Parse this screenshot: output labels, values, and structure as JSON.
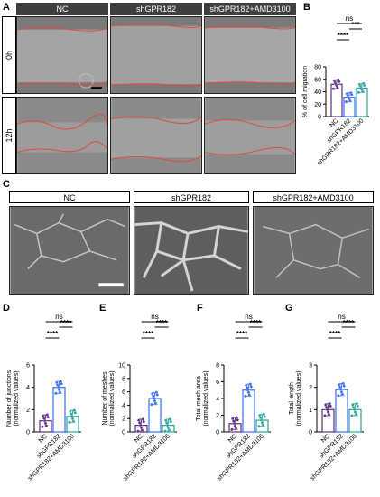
{
  "panel_labels": {
    "a": "A",
    "b": "B",
    "c": "C",
    "d": "D",
    "e": "E",
    "f": "F",
    "g": "G"
  },
  "panelA": {
    "columns": [
      "NC",
      "shGPR182",
      "shGPR182+AMD3100"
    ],
    "rows": [
      "0h",
      "12h"
    ]
  },
  "panelC": {
    "columns": [
      "NC",
      "shGPR182",
      "shGPR182+AMD3100"
    ]
  },
  "colors": {
    "nc": "#5b2d82",
    "sh": "#3a6bff",
    "amd": "#27a39a",
    "wound": "#e04a3a",
    "header_bg": "#3f3f3f"
  },
  "chart_data": [
    {
      "panel": "B",
      "type": "bar",
      "ylabel": "% of cell migration",
      "ylim": [
        0,
        80
      ],
      "yticks": [
        "0",
        "20",
        "40",
        "60",
        "80"
      ],
      "categories": [
        "NC",
        "shGPR182",
        "shGPR182+AMD3100"
      ],
      "values": [
        52,
        31,
        46
      ],
      "sig": [
        {
          "pair": "NC-shGPR182",
          "label": "****"
        },
        {
          "pair": "shGPR182-AMD3100",
          "label": "***"
        },
        {
          "pair": "NC-AMD3100",
          "label": "ns"
        }
      ]
    },
    {
      "panel": "D",
      "type": "bar",
      "ylabel": "Number of junctions (normalized values)",
      "ylim": [
        0,
        6
      ],
      "yticks": [
        "0",
        "2",
        "4",
        "6"
      ],
      "categories": [
        "NC",
        "shGPR182",
        "shGPR182+AMD3100"
      ],
      "values": [
        1.0,
        4.0,
        1.4
      ],
      "sig": [
        {
          "pair": "NC-shGPR182",
          "label": "****"
        },
        {
          "pair": "shGPR182-AMD3100",
          "label": "****"
        },
        {
          "pair": "NC-AMD3100",
          "label": "ns"
        }
      ]
    },
    {
      "panel": "E",
      "type": "bar",
      "ylabel": "Number of meshes (normalized values)",
      "ylim": [
        0,
        10
      ],
      "yticks": [
        "0",
        "2",
        "4",
        "6",
        "8",
        "10"
      ],
      "categories": [
        "NC",
        "shGPR182",
        "shGPR182+AMD3100"
      ],
      "values": [
        1.0,
        5.0,
        1.0
      ],
      "sig": [
        {
          "pair": "NC-shGPR182",
          "label": "****"
        },
        {
          "pair": "shGPR182-AMD3100",
          "label": "****"
        },
        {
          "pair": "NC-AMD3100",
          "label": "ns"
        }
      ]
    },
    {
      "panel": "F",
      "type": "bar",
      "ylabel": "Total mesh area (normalized values)",
      "ylim": [
        0,
        8
      ],
      "yticks": [
        "0",
        "2",
        "4",
        "6",
        "8"
      ],
      "categories": [
        "NC",
        "shGPR182",
        "shGPR182+AMD3100"
      ],
      "values": [
        1.0,
        5.0,
        1.4
      ],
      "sig": [
        {
          "pair": "NC-shGPR182",
          "label": "****"
        },
        {
          "pair": "shGPR182-AMD3100",
          "label": "****"
        },
        {
          "pair": "NC-AMD3100",
          "label": "ns"
        }
      ]
    },
    {
      "panel": "G",
      "type": "bar",
      "ylabel": "Total length (normalized values)",
      "ylim": [
        0,
        3
      ],
      "yticks": [
        "0",
        "1",
        "2",
        "3"
      ],
      "categories": [
        "NC",
        "shGPR182",
        "shGPR182+AMD3100"
      ],
      "values": [
        1.0,
        1.9,
        1.0
      ],
      "sig": [
        {
          "pair": "NC-shGPR182",
          "label": "****"
        },
        {
          "pair": "shGPR182-AMD3100",
          "label": "****"
        },
        {
          "pair": "NC-AMD3100",
          "label": "ns"
        }
      ]
    }
  ]
}
